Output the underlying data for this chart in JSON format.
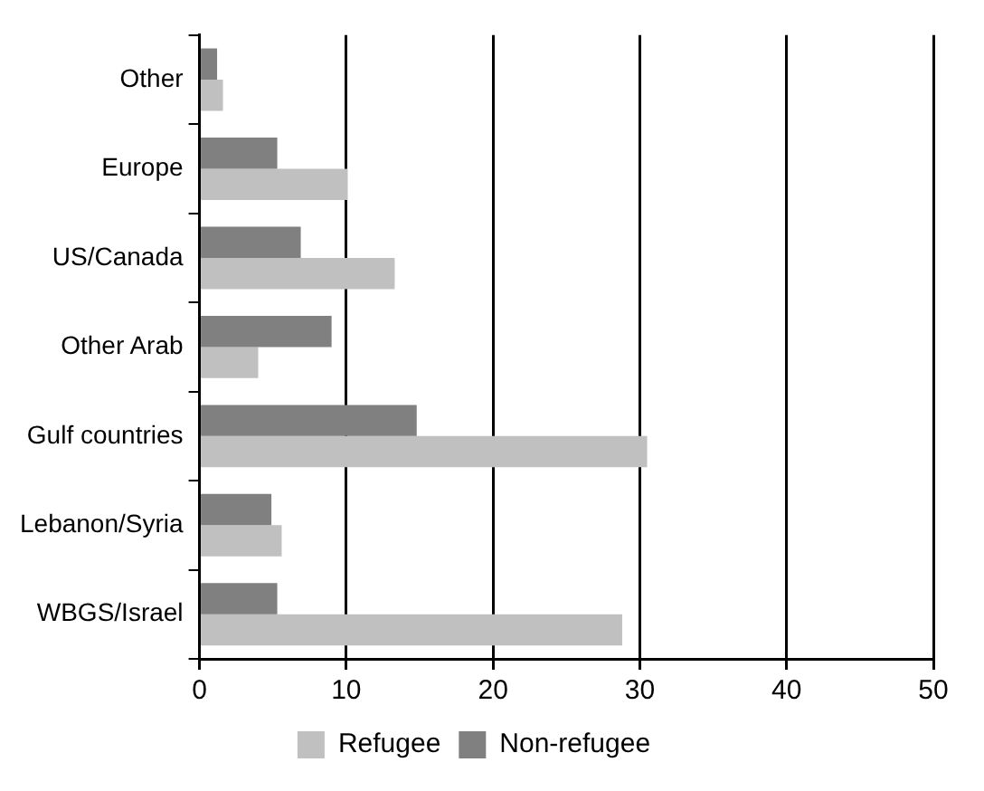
{
  "chart_data": {
    "type": "bar",
    "orientation": "horizontal",
    "categories": [
      "Other",
      "Europe",
      "US/Canada",
      "Other Arab",
      "Gulf countries",
      "Lebanon/Syria",
      "WBGS/Israel"
    ],
    "series": [
      {
        "name": "Refugee",
        "color": "#c0c0c0",
        "values": [
          1.6,
          10.1,
          13.3,
          4.0,
          30.5,
          5.6,
          28.8
        ]
      },
      {
        "name": "Non-refugee",
        "color": "#808080",
        "values": [
          1.2,
          5.3,
          6.9,
          9.0,
          14.8,
          4.9,
          5.3
        ]
      }
    ],
    "xlim": [
      0,
      50
    ],
    "xticks": [
      0,
      10,
      20,
      30,
      40,
      50
    ],
    "grid": "x",
    "legend": "bottom"
  }
}
